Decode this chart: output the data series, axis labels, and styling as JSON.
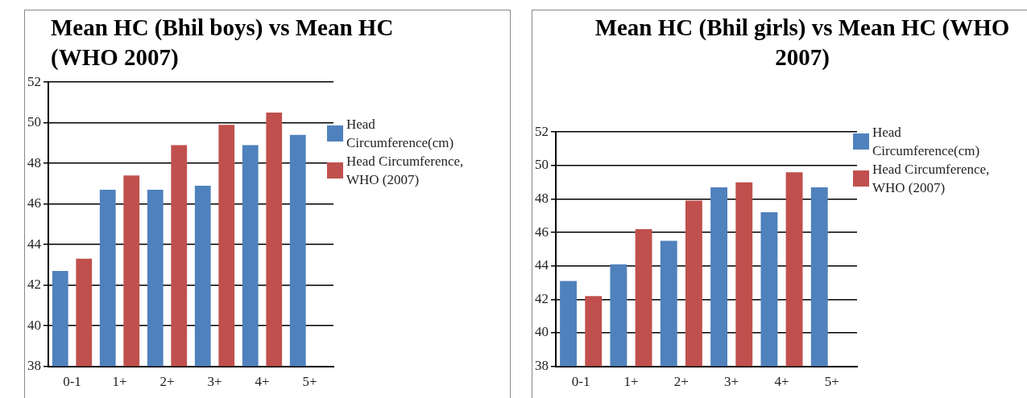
{
  "chart_data": [
    {
      "type": "bar",
      "title": "Mean HC (Bhil boys) vs Mean HC (WHO 2007)",
      "categories": [
        "0-1",
        "1+",
        "2+",
        "3+",
        "4+",
        "5+"
      ],
      "series": [
        {
          "name": "Head Circumference(cm)",
          "color": "#4f81bd",
          "values": [
            42.7,
            46.7,
            46.7,
            46.9,
            48.9,
            49.4
          ]
        },
        {
          "name": "Head Circumference, WHO (2007)",
          "color": "#c0504d",
          "values": [
            43.3,
            47.4,
            48.9,
            49.9,
            50.5,
            null
          ]
        }
      ],
      "ylim": [
        38,
        52
      ],
      "yticks": [
        38,
        40,
        42,
        44,
        46,
        48,
        50,
        52
      ],
      "grid": "y",
      "legend": "right"
    },
    {
      "type": "bar",
      "title": "Mean HC (Bhil girls) vs Mean HC (WHO 2007)",
      "categories": [
        "0-1",
        "1+",
        "2+",
        "3+",
        "4+",
        "5+"
      ],
      "series": [
        {
          "name": "Head Circumference(cm)",
          "color": "#4f81bd",
          "values": [
            43.1,
            44.1,
            45.5,
            48.7,
            47.2,
            48.7
          ]
        },
        {
          "name": "Head Circumference, WHO (2007)",
          "color": "#c0504d",
          "values": [
            42.2,
            46.2,
            47.9,
            49.0,
            49.6,
            null
          ]
        }
      ],
      "ylim": [
        38,
        52
      ],
      "yticks": [
        38,
        40,
        42,
        44,
        46,
        48,
        50,
        52
      ],
      "grid": "y",
      "legend": "right"
    }
  ]
}
